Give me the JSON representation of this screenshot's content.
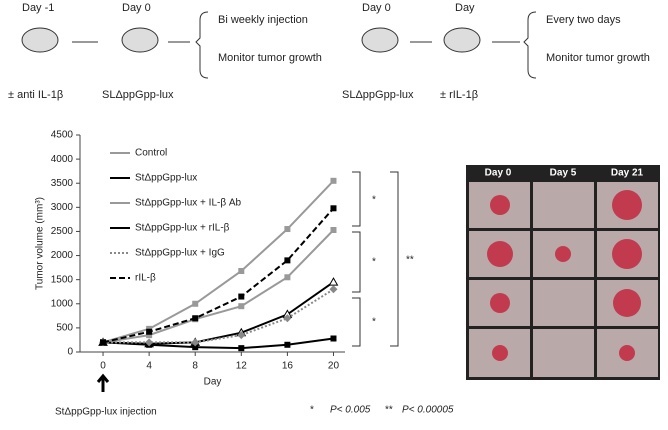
{
  "schematic": {
    "left": {
      "step1_day": "Day -1",
      "step2_day": "Day 0",
      "step1_label": "± anti IL-1β",
      "step2_label": "SLΔppGpp-lux",
      "note1": "Bi weekly injection",
      "note2": "Monitor tumor growth"
    },
    "right": {
      "step1_day": "Day 0",
      "step2_day": "Day",
      "step1_label": "SLΔppGpp-lux",
      "step2_label": "± rIL-1β",
      "note1": "Every two days",
      "note2": "Monitor tumor growth"
    }
  },
  "chart_data": {
    "type": "line",
    "y_label": "Tumor volume (mm³)",
    "x_label": "Day",
    "x": [
      0,
      4,
      8,
      12,
      16,
      20
    ],
    "xlim": [
      -2,
      21
    ],
    "xticks": [
      0,
      4,
      8,
      12,
      16,
      20
    ],
    "ylim": [
      0,
      4500
    ],
    "yticks": [
      0,
      500,
      1000,
      1500,
      2000,
      2500,
      3000,
      3500,
      4000,
      4500
    ],
    "series": [
      {
        "name": "Control",
        "color": "#999999",
        "marker": "square",
        "dash": "solid",
        "values": [
          200,
          480,
          1000,
          1680,
          2550,
          3550
        ]
      },
      {
        "name": "StΔppGpp-lux",
        "color": "#000000",
        "marker": "triangle",
        "dash": "solid",
        "values": [
          200,
          170,
          200,
          400,
          780,
          1450
        ]
      },
      {
        "name": "StΔppGpp-lux + IL-β Ab",
        "color": "#999999",
        "marker": "square",
        "dash": "solid",
        "values": [
          200,
          350,
          680,
          950,
          1550,
          2530
        ]
      },
      {
        "name": "StΔppGpp-lux + rIL-β",
        "color": "#000000",
        "marker": "square",
        "dash": "solid",
        "values": [
          200,
          150,
          100,
          80,
          150,
          280
        ]
      },
      {
        "name": "StΔppGpp-lux + IgG",
        "color": "#888888",
        "marker": "diamond",
        "dash": "dotted",
        "values": [
          200,
          200,
          200,
          350,
          700,
          1300
        ]
      },
      {
        "name": "rIL-β",
        "color": "#000000",
        "marker": "square",
        "dash": "dashed",
        "values": [
          200,
          420,
          700,
          1150,
          1900,
          2980
        ]
      }
    ],
    "annotation": "StΔppGpp-lux injection",
    "significance": [
      "*",
      "*",
      "*",
      "**"
    ],
    "footnote": {
      "s1": "*",
      "p1": "P< 0.005",
      "s2": "**",
      "p2": "P< 0.00005"
    }
  },
  "photos": {
    "headers": [
      "Day 0",
      "Day 5",
      "Day 21"
    ]
  }
}
